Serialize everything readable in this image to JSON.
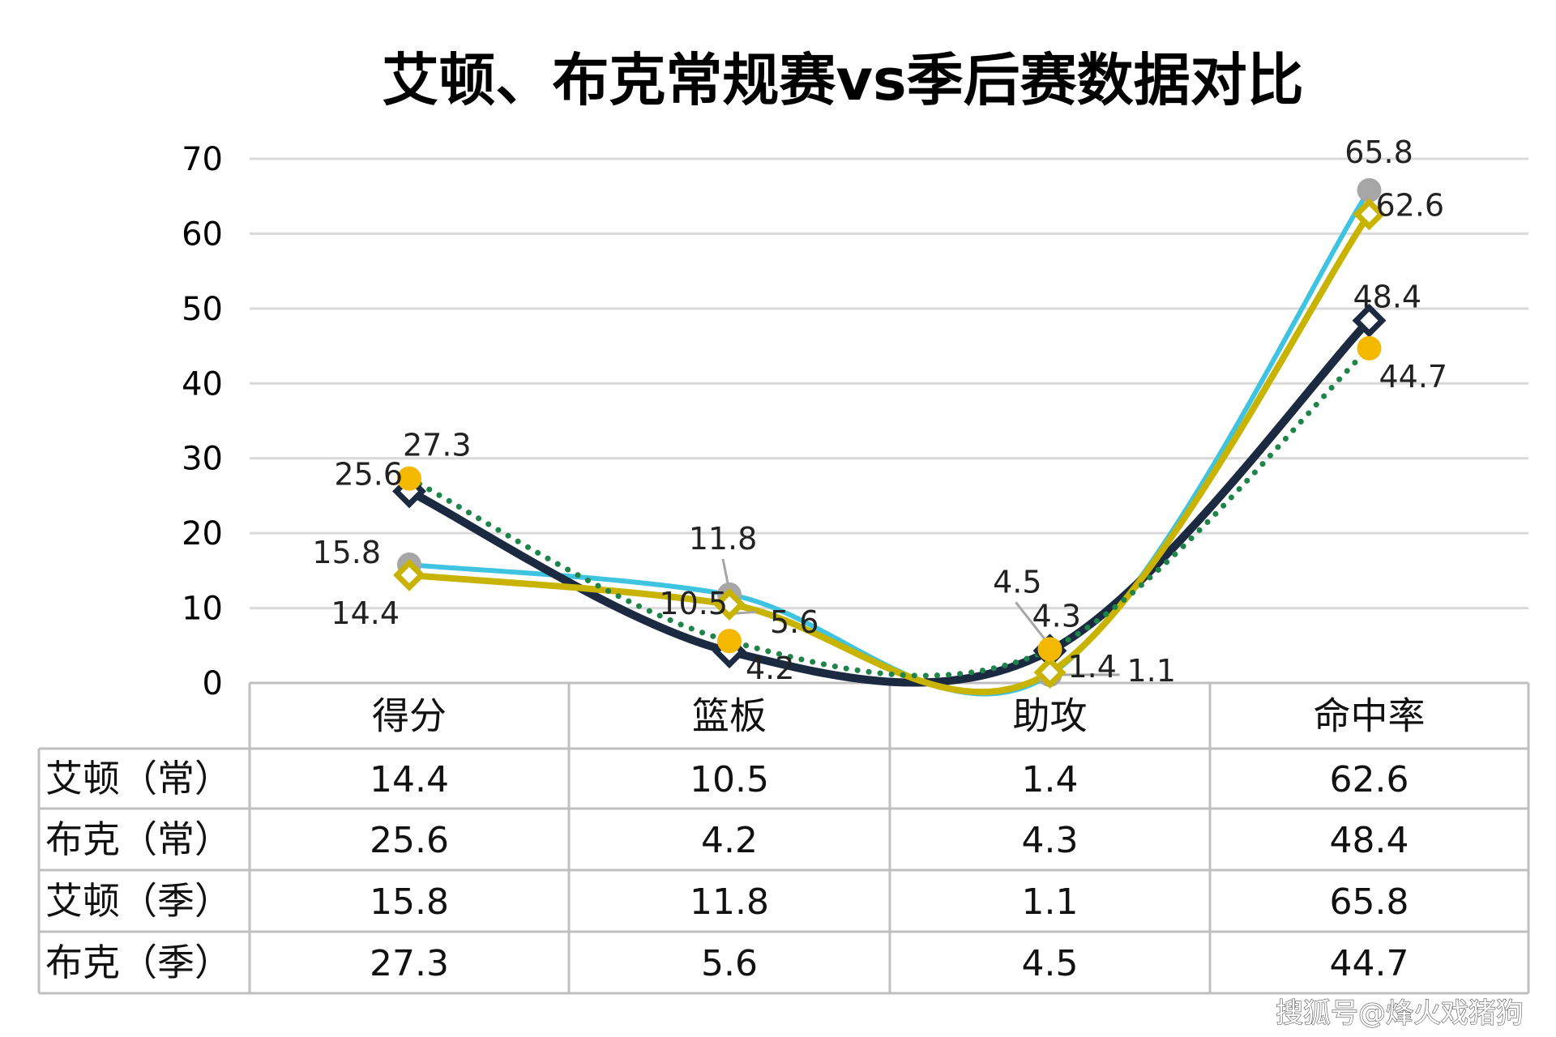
{
  "chart_data": {
    "type": "line",
    "title": "艾顿、布克常规赛vs季后赛数据对比",
    "categories": [
      "得分",
      "篮板",
      "助攻",
      "命中率"
    ],
    "ylim": [
      0,
      70
    ],
    "yticks": [
      "0",
      "10",
      "20",
      "30",
      "40",
      "50",
      "60",
      "70"
    ],
    "grid": true,
    "series": [
      {
        "name": "艾顿（常）",
        "values": [
          14.4,
          10.5,
          1.4,
          62.6
        ],
        "value_labels": [
          "14.4",
          "10.5",
          "1.4",
          "62.6"
        ],
        "color": "#C8B400",
        "marker": "diamond-open",
        "line": "solid"
      },
      {
        "name": "布克（常）",
        "values": [
          25.6,
          4.2,
          4.3,
          48.4
        ],
        "value_labels": [
          "25.6",
          "4.2",
          "4.3",
          "48.4"
        ],
        "color": "#1B2A41",
        "marker": "diamond-open",
        "line": "solid"
      },
      {
        "name": "艾顿（季）",
        "values": [
          15.8,
          11.8,
          1.1,
          65.8
        ],
        "value_labels": [
          "15.8",
          "11.8",
          "1.1",
          "65.8"
        ],
        "color": "#3EC3E0",
        "marker": "circle-gray",
        "line": "solid"
      },
      {
        "name": "布克（季）",
        "values": [
          27.3,
          5.6,
          4.5,
          44.7
        ],
        "value_labels": [
          "27.3",
          "5.6",
          "4.5",
          "44.7"
        ],
        "color": "#1E8449",
        "marker": "circle-orange",
        "line": "dotted"
      }
    ]
  },
  "watermark": "搜狐号@烽火戏猪狗",
  "colors": {
    "grid": "#D9D9D9",
    "table_border": "#BFBFBF",
    "marker_gray": "#A6A6A6",
    "marker_orange": "#F5B800"
  }
}
